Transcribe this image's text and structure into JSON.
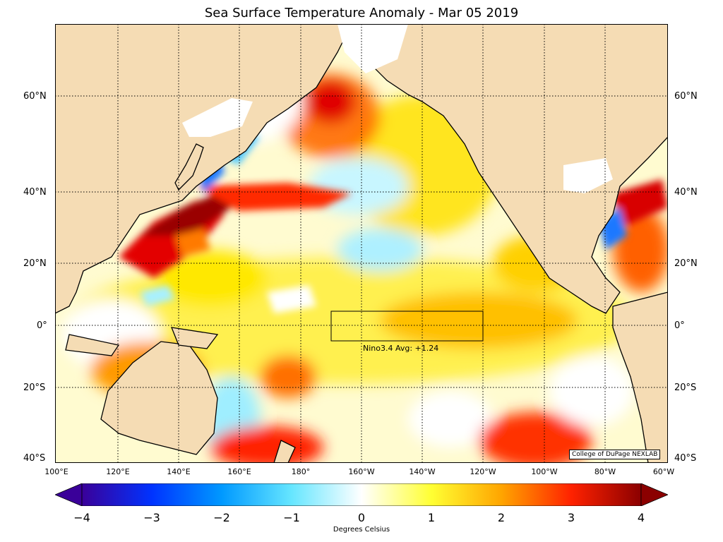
{
  "title": "Sea Surface Temperature Anomaly - Mar 05 2019",
  "lat_labels": [
    "60°N",
    "40°N",
    "20°N",
    "0°",
    "20°S",
    "40°S"
  ],
  "lon_labels": [
    "100°E",
    "120°E",
    "140°E",
    "160°E",
    "180°",
    "160°W",
    "140°W",
    "120°W",
    "100°W",
    "80°W",
    "60°W"
  ],
  "nino_label": "Nino3.4 Avg: +1.24",
  "credit": "College of DuPage NEXLAB",
  "colorbar": {
    "ticks": [
      "−4",
      "−3",
      "−2",
      "−1",
      "0",
      "1",
      "2",
      "3",
      "4"
    ],
    "label": "Degrees Celsius",
    "colors": [
      "#3a0099",
      "#0033ff",
      "#0099ff",
      "#66e6ff",
      "#ffffff",
      "#ffff33",
      "#ffa500",
      "#ff2200",
      "#8b0000"
    ]
  },
  "colors": {
    "land": "#f5dcb4",
    "ice": "#ffffff",
    "ocean_neutral": "#fffde0",
    "warm": "#ffd200",
    "hot": "#e60000",
    "cool": "#7fe7ff",
    "cold": "#1e78ff"
  }
}
